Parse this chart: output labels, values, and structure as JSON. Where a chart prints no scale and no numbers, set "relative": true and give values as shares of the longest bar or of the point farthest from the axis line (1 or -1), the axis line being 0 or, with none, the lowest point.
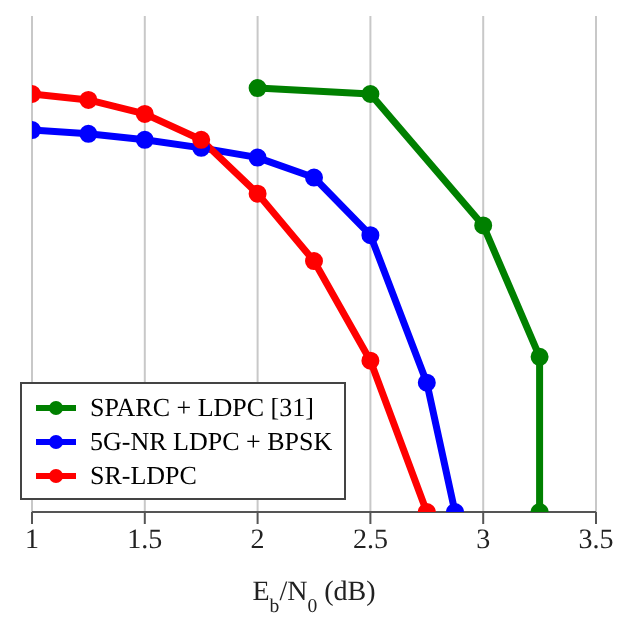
{
  "chart_data": {
    "type": "line",
    "xlabel": "E$_{b}$/N$_{0}$ (dB)",
    "relative": true,
    "xlim": [
      1,
      3.5
    ],
    "xticks": [
      1,
      1.5,
      2,
      2.5,
      3,
      3.5
    ],
    "grid": "x",
    "legend": "bottom left",
    "marker": "circle",
    "line_style": "solid",
    "series": [
      {
        "name": "SPARC + LDPC [31]",
        "color": "#008000",
        "x": [
          2,
          2.5,
          3,
          3.25,
          3.25
        ],
        "values": [
          1,
          0.986,
          0.676,
          0.366,
          0
        ]
      },
      {
        "name": "5G-NR LDPC + BPSK",
        "color": "#0000ff",
        "x": [
          1,
          1.25,
          1.5,
          1.75,
          2,
          2.25,
          2.5,
          2.75,
          2.875
        ],
        "values": [
          0.901,
          0.892,
          0.878,
          0.859,
          0.836,
          0.789,
          0.653,
          0.305,
          0
        ]
      },
      {
        "name": "SR-LDPC",
        "color": "#ff0000",
        "x": [
          1,
          1.25,
          1.5,
          1.75,
          2,
          2.25,
          2.5,
          2.75
        ],
        "values": [
          0.986,
          0.972,
          0.939,
          0.878,
          0.751,
          0.592,
          0.357,
          0
        ]
      }
    ]
  }
}
